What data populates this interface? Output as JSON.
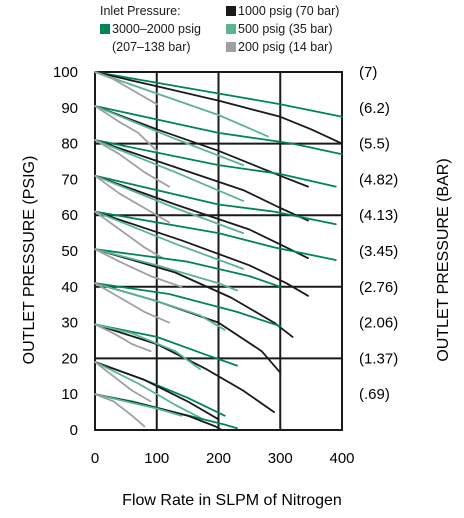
{
  "chart_data": {
    "type": "line",
    "legend": {
      "title": "Inlet Pressure:",
      "placement": "top",
      "entries": [
        {
          "label": "3000–2000 psig",
          "sublabel": "(207–138 bar)",
          "color": "#00845a"
        },
        {
          "label": "1000 psig (70 bar)",
          "color": "#1a1a1a"
        },
        {
          "label": "500 psig (35 bar)",
          "color": "#5cb48f"
        },
        {
          "label": "200 psig (14 bar)",
          "color": "#a0a0a0"
        }
      ]
    },
    "xlabel": "Flow Rate in SLPM of Nitrogen",
    "ylabel": "OUTLET PRESSURE (PSIG)",
    "y2label": "OUTLET PRESSURE (BAR)",
    "xlim": [
      0,
      400
    ],
    "ylim": [
      0,
      100
    ],
    "xticks": [
      "0",
      "100",
      "200",
      "300",
      "400"
    ],
    "yticks": [
      "0",
      "10",
      "20",
      "30",
      "40",
      "50",
      "60",
      "70",
      "80",
      "90",
      "100"
    ],
    "bar_ticks": [
      {
        "value": 100,
        "label": "(7)"
      },
      {
        "value": 90,
        "label": "(6.2)"
      },
      {
        "value": 80,
        "label": "(5.5)"
      },
      {
        "value": 70,
        "label": "(4.82)"
      },
      {
        "value": 60,
        "label": "(4.13)"
      },
      {
        "value": 50,
        "label": "(3.45)"
      },
      {
        "value": 40,
        "label": "(2.76)"
      },
      {
        "value": 30,
        "label": "(2.06)"
      },
      {
        "value": 20,
        "label": "(1.37)"
      },
      {
        "value": 10,
        "label": "(.69)"
      }
    ],
    "grid": true,
    "series": [
      {
        "group": 100,
        "color": "#00845a",
        "points": [
          [
            0,
            100
          ],
          [
            100,
            97
          ],
          [
            200,
            94
          ],
          [
            300,
            91
          ],
          [
            400,
            87.5
          ]
        ]
      },
      {
        "group": 100,
        "color": "#1a1a1a",
        "points": [
          [
            0,
            100
          ],
          [
            100,
            96
          ],
          [
            200,
            92
          ],
          [
            300,
            87.5
          ],
          [
            350,
            84
          ],
          [
            400,
            80
          ]
        ]
      },
      {
        "group": 100,
        "color": "#5cb48f",
        "points": [
          [
            0,
            100
          ],
          [
            100,
            94
          ],
          [
            200,
            88
          ],
          [
            280,
            82
          ]
        ]
      },
      {
        "group": 100,
        "color": "#a0a0a0",
        "points": [
          [
            0,
            100
          ],
          [
            30,
            98
          ],
          [
            70,
            94
          ],
          [
            100,
            91
          ]
        ]
      },
      {
        "group": 90,
        "color": "#00845a",
        "points": [
          [
            0,
            90.5
          ],
          [
            200,
            83
          ],
          [
            320,
            80
          ],
          [
            400,
            77
          ]
        ]
      },
      {
        "group": 90,
        "color": "#1a1a1a",
        "points": [
          [
            0,
            90.5
          ],
          [
            100,
            84
          ],
          [
            200,
            78
          ],
          [
            300,
            71
          ],
          [
            345,
            68
          ]
        ]
      },
      {
        "group": 90,
        "color": "#5cb48f",
        "points": [
          [
            0,
            90.5
          ],
          [
            120,
            82
          ],
          [
            240,
            74
          ]
        ]
      },
      {
        "group": 90,
        "color": "#a0a0a0",
        "points": [
          [
            0,
            90.5
          ],
          [
            40,
            86
          ],
          [
            70,
            83
          ],
          [
            100,
            78
          ]
        ]
      },
      {
        "group": 80,
        "color": "#00845a",
        "points": [
          [
            0,
            81
          ],
          [
            200,
            74
          ],
          [
            300,
            71.5
          ],
          [
            390,
            68
          ]
        ]
      },
      {
        "group": 80,
        "color": "#1a1a1a",
        "points": [
          [
            0,
            81
          ],
          [
            120,
            74
          ],
          [
            240,
            67
          ],
          [
            300,
            62
          ],
          [
            345,
            58.5
          ]
        ]
      },
      {
        "group": 80,
        "color": "#5cb48f",
        "points": [
          [
            0,
            81
          ],
          [
            130,
            72
          ],
          [
            240,
            64
          ]
        ]
      },
      {
        "group": 80,
        "color": "#a0a0a0",
        "points": [
          [
            0,
            81
          ],
          [
            40,
            77
          ],
          [
            80,
            72
          ],
          [
            120,
            68
          ]
        ]
      },
      {
        "group": 70,
        "color": "#00845a",
        "points": [
          [
            0,
            71
          ],
          [
            200,
            63
          ],
          [
            290,
            61
          ],
          [
            390,
            57.5
          ]
        ]
      },
      {
        "group": 70,
        "color": "#1a1a1a",
        "points": [
          [
            0,
            71
          ],
          [
            130,
            63
          ],
          [
            250,
            56
          ],
          [
            310,
            51
          ],
          [
            345,
            48
          ]
        ]
      },
      {
        "group": 70,
        "color": "#5cb48f",
        "points": [
          [
            0,
            71
          ],
          [
            130,
            62
          ],
          [
            240,
            55
          ]
        ]
      },
      {
        "group": 70,
        "color": "#a0a0a0",
        "points": [
          [
            0,
            71
          ],
          [
            40,
            66
          ],
          [
            80,
            62
          ],
          [
            120,
            58
          ]
        ]
      },
      {
        "group": 60,
        "color": "#00845a",
        "points": [
          [
            0,
            61
          ],
          [
            200,
            55
          ],
          [
            290,
            51
          ],
          [
            390,
            47.5
          ]
        ]
      },
      {
        "group": 60,
        "color": "#1a1a1a",
        "points": [
          [
            0,
            61
          ],
          [
            140,
            53
          ],
          [
            250,
            46
          ],
          [
            310,
            41
          ],
          [
            345,
            37.5
          ]
        ]
      },
      {
        "group": 60,
        "color": "#5cb48f",
        "points": [
          [
            0,
            61
          ],
          [
            130,
            52
          ],
          [
            240,
            45
          ]
        ]
      },
      {
        "group": 60,
        "color": "#a0a0a0",
        "points": [
          [
            0,
            61
          ],
          [
            40,
            56
          ],
          [
            80,
            51
          ],
          [
            110,
            48
          ]
        ]
      },
      {
        "group": 50,
        "color": "#00845a",
        "points": [
          [
            0,
            50.5
          ],
          [
            150,
            47
          ],
          [
            250,
            43
          ],
          [
            300,
            40
          ]
        ]
      },
      {
        "group": 50,
        "color": "#1a1a1a",
        "points": [
          [
            0,
            50.5
          ],
          [
            130,
            44
          ],
          [
            220,
            37
          ],
          [
            290,
            30
          ],
          [
            320,
            26
          ]
        ]
      },
      {
        "group": 50,
        "color": "#5cb48f",
        "points": [
          [
            0,
            50.5
          ],
          [
            100,
            46
          ],
          [
            200,
            41
          ],
          [
            230,
            39
          ]
        ]
      },
      {
        "group": 50,
        "color": "#a0a0a0",
        "points": [
          [
            0,
            50.5
          ],
          [
            40,
            47
          ],
          [
            90,
            43
          ],
          [
            140,
            40
          ]
        ]
      },
      {
        "group": 40,
        "color": "#00845a",
        "points": [
          [
            0,
            41
          ],
          [
            120,
            38
          ],
          [
            230,
            33
          ],
          [
            300,
            29
          ]
        ]
      },
      {
        "group": 40,
        "color": "#1a1a1a",
        "points": [
          [
            0,
            41
          ],
          [
            100,
            36
          ],
          [
            200,
            30
          ],
          [
            270,
            22
          ],
          [
            300,
            16
          ]
        ]
      },
      {
        "group": 40,
        "color": "#5cb48f",
        "points": [
          [
            0,
            41
          ],
          [
            100,
            36
          ],
          [
            170,
            32
          ],
          [
            210,
            28
          ]
        ]
      },
      {
        "group": 40,
        "color": "#a0a0a0",
        "points": [
          [
            0,
            41
          ],
          [
            40,
            37
          ],
          [
            80,
            33
          ],
          [
            120,
            30
          ]
        ]
      },
      {
        "group": 30,
        "color": "#00845a",
        "points": [
          [
            0,
            29.5
          ],
          [
            100,
            26
          ],
          [
            180,
            21
          ],
          [
            230,
            18
          ]
        ]
      },
      {
        "group": 30,
        "color": "#1a1a1a",
        "points": [
          [
            0,
            29.5
          ],
          [
            100,
            24
          ],
          [
            180,
            17
          ],
          [
            240,
            11
          ],
          [
            290,
            5
          ]
        ]
      },
      {
        "group": 30,
        "color": "#5cb48f",
        "points": [
          [
            0,
            29.5
          ],
          [
            60,
            27
          ],
          [
            130,
            22
          ],
          [
            170,
            17
          ]
        ]
      },
      {
        "group": 30,
        "color": "#a0a0a0",
        "points": [
          [
            0,
            29.5
          ],
          [
            30,
            27
          ],
          [
            60,
            24
          ],
          [
            90,
            22
          ]
        ]
      },
      {
        "group": 20,
        "color": "#00845a",
        "points": [
          [
            0,
            19
          ],
          [
            80,
            14
          ],
          [
            150,
            9
          ],
          [
            210,
            4
          ]
        ]
      },
      {
        "group": 20,
        "color": "#1a1a1a",
        "points": [
          [
            0,
            19
          ],
          [
            80,
            14
          ],
          [
            150,
            8
          ],
          [
            200,
            3
          ]
        ]
      },
      {
        "group": 20,
        "color": "#5cb48f",
        "points": [
          [
            0,
            19
          ],
          [
            70,
            13
          ],
          [
            130,
            7
          ],
          [
            175,
            3
          ]
        ]
      },
      {
        "group": 20,
        "color": "#a0a0a0",
        "points": [
          [
            0,
            19
          ],
          [
            30,
            15
          ],
          [
            60,
            11
          ],
          [
            90,
            8
          ]
        ]
      },
      {
        "group": 10,
        "color": "#00845a",
        "points": [
          [
            0,
            10
          ],
          [
            60,
            8
          ],
          [
            140,
            4.5
          ],
          [
            210,
            1.5
          ],
          [
            230,
            0.5
          ]
        ]
      },
      {
        "group": 10,
        "color": "#1a1a1a",
        "points": [
          [
            0,
            10
          ],
          [
            80,
            7
          ],
          [
            150,
            4
          ],
          [
            195,
            1
          ],
          [
            205,
            0
          ]
        ]
      },
      {
        "group": 10,
        "color": "#5cb48f",
        "points": [
          [
            0,
            10
          ],
          [
            50,
            8
          ],
          [
            100,
            6
          ],
          [
            140,
            4
          ]
        ]
      },
      {
        "group": 10,
        "color": "#a0a0a0",
        "points": [
          [
            0,
            10
          ],
          [
            30,
            8
          ],
          [
            60,
            4
          ],
          [
            80,
            1
          ]
        ]
      }
    ]
  }
}
